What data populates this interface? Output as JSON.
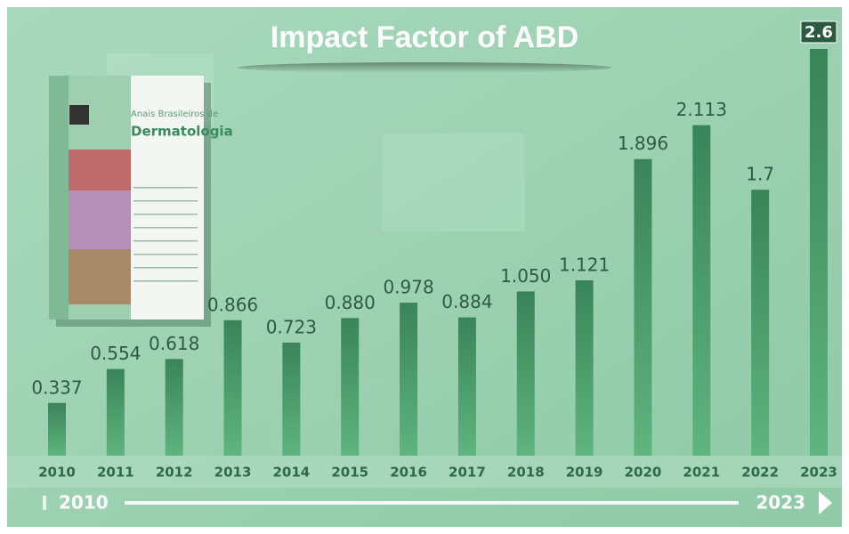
{
  "chart_data": {
    "type": "bar",
    "title": "Impact Factor of ABD",
    "categories": [
      "2010",
      "2011",
      "2012",
      "2013",
      "2014",
      "2015",
      "2016",
      "2017",
      "2018",
      "2019",
      "2020",
      "2021",
      "2022",
      "2023"
    ],
    "values": [
      0.337,
      0.554,
      0.618,
      0.866,
      0.723,
      0.88,
      0.978,
      0.884,
      1.05,
      1.121,
      1.896,
      2.113,
      1.7,
      2.6
    ],
    "value_labels": [
      "0.337",
      "0.554",
      "0.618",
      "0.866",
      "0.723",
      "0.880",
      "0.978",
      "0.884",
      "1.050",
      "1.121",
      "1.896",
      "2.113",
      "1.7",
      "2.6"
    ],
    "color": "#3f8f60",
    "timeline_start": "2010",
    "timeline_end": "2023"
  },
  "cover": {
    "title_line1": "Anais Brasileiros de",
    "title_line2": "Dermatologia"
  }
}
